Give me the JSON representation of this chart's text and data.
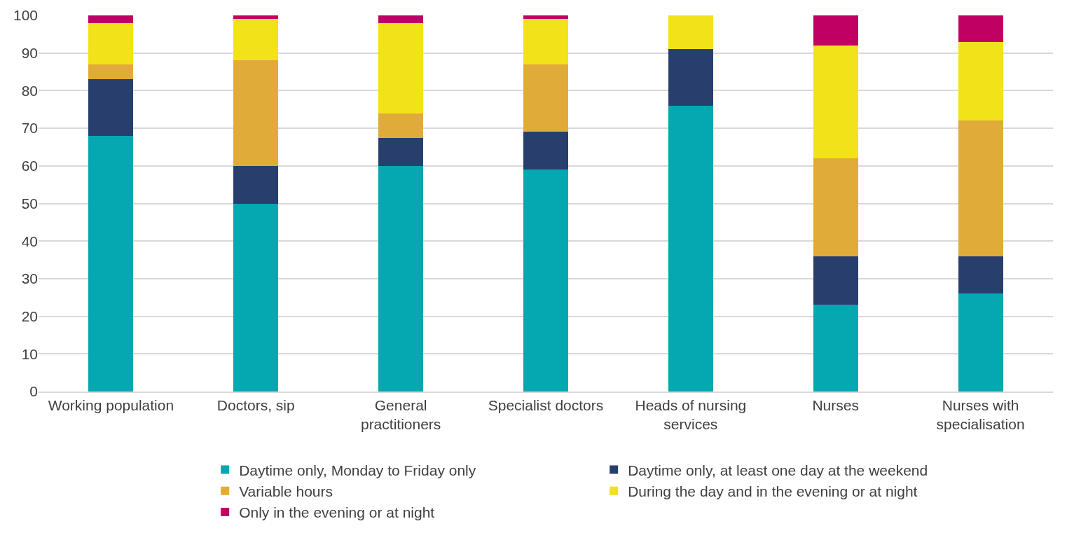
{
  "chart_data": {
    "type": "bar",
    "stacked": true,
    "categories": [
      "Working population",
      "Doctors, sip",
      "General practitioners",
      "Specialist doctors",
      "Heads of nursing services",
      "Nurses",
      "Nurses with specialisation"
    ],
    "series": [
      {
        "name": "Daytime only, Monday to Friday only",
        "color": "#05a8b0",
        "values": [
          68,
          50,
          60,
          59,
          76,
          23,
          26
        ]
      },
      {
        "name": "Daytime only, at least one day at the weekend",
        "color": "#283f6e",
        "values": [
          15,
          10,
          7.5,
          10,
          15,
          13,
          10
        ]
      },
      {
        "name": "Variable hours",
        "color": "#e1ab3a",
        "values": [
          4,
          28,
          6.5,
          18,
          0,
          26,
          36
        ]
      },
      {
        "name": "During the day and in the evening or at night",
        "color": "#f2e21a",
        "values": [
          11,
          11,
          24,
          12,
          9,
          30,
          21
        ]
      },
      {
        "name": "Only in the evening or at night",
        "color": "#c00063",
        "values": [
          2,
          1,
          2,
          1,
          0,
          8,
          7
        ]
      }
    ],
    "ylim": [
      0,
      100
    ],
    "yticks": [
      0,
      10,
      20,
      30,
      40,
      50,
      60,
      70,
      80,
      90,
      100
    ],
    "grid": "y",
    "legend": "bottom"
  }
}
